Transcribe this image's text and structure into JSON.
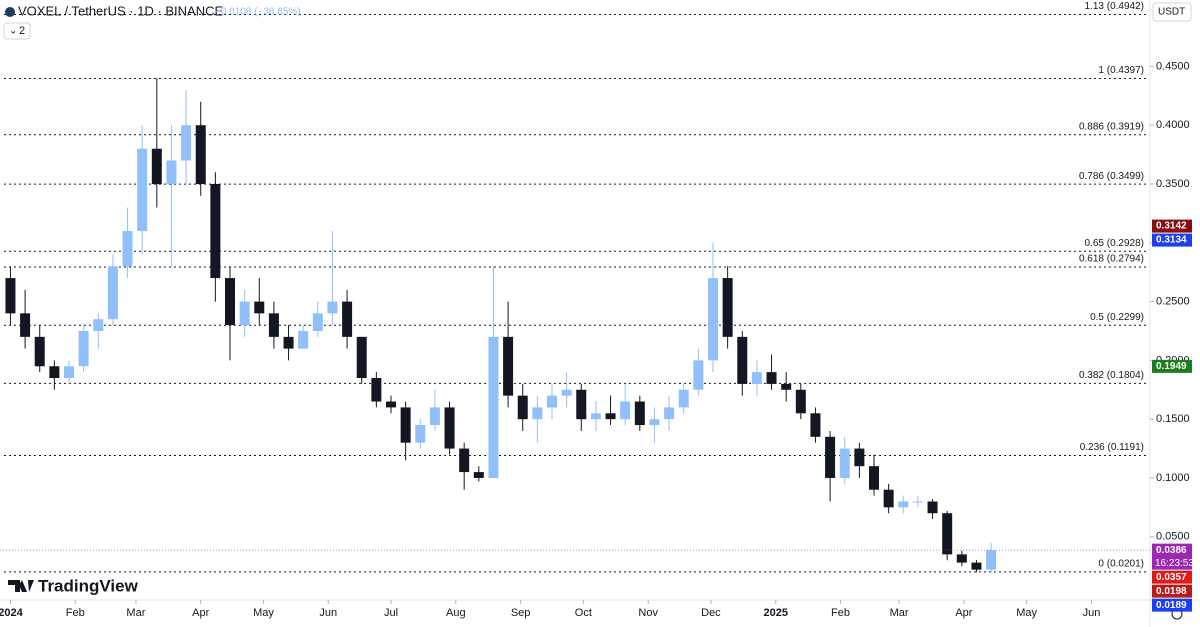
{
  "header": {
    "symbol": "VOXEL / TetherUS · 1D · BINANCE",
    "change": "−0.0108 (−38.85%)",
    "indicator_count": "2",
    "currency": "USDT"
  },
  "logo": "TradingView",
  "chart_data": {
    "type": "candlestick",
    "up_color": "#90bff9",
    "down_color": "#131722",
    "x": [
      0,
      7,
      14,
      21,
      28,
      35,
      42,
      49,
      56,
      63,
      70,
      77,
      84,
      91,
      98,
      105,
      112,
      119,
      126,
      133,
      140,
      147,
      154,
      161,
      168,
      175,
      182,
      189,
      196,
      203,
      210,
      217,
      224,
      231,
      238,
      245,
      252,
      259,
      266,
      273,
      280,
      287,
      294,
      301,
      308,
      315,
      322,
      329,
      336,
      343,
      350,
      357,
      364,
      371,
      378,
      385,
      392,
      399,
      406,
      413,
      420,
      427,
      434,
      441,
      448,
      455,
      462,
      469
    ],
    "open": [
      0.27,
      0.24,
      0.22,
      0.195,
      0.185,
      0.195,
      0.225,
      0.235,
      0.28,
      0.31,
      0.38,
      0.35,
      0.37,
      0.4,
      0.35,
      0.27,
      0.23,
      0.25,
      0.24,
      0.22,
      0.21,
      0.225,
      0.24,
      0.25,
      0.22,
      0.185,
      0.165,
      0.16,
      0.13,
      0.145,
      0.16,
      0.125,
      0.105,
      0.1,
      0.22,
      0.17,
      0.15,
      0.16,
      0.17,
      0.175,
      0.15,
      0.155,
      0.15,
      0.165,
      0.145,
      0.15,
      0.16,
      0.175,
      0.2,
      0.27,
      0.22,
      0.18,
      0.19,
      0.18,
      0.175,
      0.155,
      0.135,
      0.1,
      0.125,
      0.11,
      0.09,
      0.075,
      0.08,
      0.08,
      0.07,
      0.035,
      0.028,
      0.022
    ],
    "high": [
      0.28,
      0.26,
      0.23,
      0.2,
      0.2,
      0.23,
      0.24,
      0.29,
      0.33,
      0.4,
      0.44,
      0.4,
      0.43,
      0.42,
      0.36,
      0.28,
      0.26,
      0.27,
      0.25,
      0.23,
      0.23,
      0.25,
      0.31,
      0.26,
      0.22,
      0.19,
      0.17,
      0.165,
      0.15,
      0.175,
      0.165,
      0.13,
      0.11,
      0.28,
      0.25,
      0.18,
      0.17,
      0.18,
      0.19,
      0.18,
      0.165,
      0.17,
      0.18,
      0.17,
      0.16,
      0.17,
      0.18,
      0.21,
      0.3,
      0.28,
      0.225,
      0.2,
      0.205,
      0.19,
      0.18,
      0.16,
      0.14,
      0.135,
      0.13,
      0.12,
      0.095,
      0.085,
      0.085,
      0.082,
      0.072,
      0.038,
      0.03,
      0.045
    ],
    "low": [
      0.23,
      0.21,
      0.19,
      0.175,
      0.18,
      0.19,
      0.21,
      0.23,
      0.27,
      0.29,
      0.33,
      0.28,
      0.35,
      0.34,
      0.25,
      0.2,
      0.22,
      0.23,
      0.21,
      0.2,
      0.21,
      0.22,
      0.23,
      0.21,
      0.18,
      0.16,
      0.155,
      0.115,
      0.125,
      0.14,
      0.12,
      0.09,
      0.097,
      0.1,
      0.16,
      0.14,
      0.13,
      0.15,
      0.16,
      0.14,
      0.14,
      0.145,
      0.145,
      0.14,
      0.13,
      0.14,
      0.155,
      0.17,
      0.19,
      0.21,
      0.17,
      0.17,
      0.175,
      0.165,
      0.15,
      0.13,
      0.08,
      0.095,
      0.1,
      0.085,
      0.07,
      0.07,
      0.075,
      0.065,
      0.03,
      0.025,
      0.0198,
      0.0189
    ],
    "close": [
      0.24,
      0.22,
      0.195,
      0.185,
      0.195,
      0.225,
      0.235,
      0.28,
      0.31,
      0.38,
      0.35,
      0.37,
      0.4,
      0.35,
      0.27,
      0.23,
      0.25,
      0.24,
      0.22,
      0.21,
      0.225,
      0.24,
      0.25,
      0.22,
      0.185,
      0.165,
      0.16,
      0.13,
      0.145,
      0.16,
      0.125,
      0.105,
      0.1,
      0.22,
      0.17,
      0.15,
      0.16,
      0.17,
      0.175,
      0.15,
      0.155,
      0.15,
      0.165,
      0.145,
      0.15,
      0.16,
      0.175,
      0.2,
      0.27,
      0.22,
      0.18,
      0.19,
      0.18,
      0.175,
      0.155,
      0.135,
      0.1,
      0.125,
      0.11,
      0.09,
      0.075,
      0.08,
      0.08,
      0.07,
      0.035,
      0.028,
      0.022,
      0.0386
    ],
    "xlim": [
      -5,
      545
    ],
    "xticks": [
      {
        "value": 0,
        "label": "2024"
      },
      {
        "value": 31,
        "label": "Feb"
      },
      {
        "value": 60,
        "label": "Mar"
      },
      {
        "value": 91,
        "label": "Apr"
      },
      {
        "value": 121,
        "label": "May"
      },
      {
        "value": 152,
        "label": "Jun"
      },
      {
        "value": 182,
        "label": "Jul"
      },
      {
        "value": 213,
        "label": "Aug"
      },
      {
        "value": 244,
        "label": "Sep"
      },
      {
        "value": 274,
        "label": "Oct"
      },
      {
        "value": 305,
        "label": "Nov"
      },
      {
        "value": 335,
        "label": "Dec"
      },
      {
        "value": 366,
        "label": "2025"
      },
      {
        "value": 397,
        "label": "Feb"
      },
      {
        "value": 425,
        "label": "Mar"
      },
      {
        "value": 456,
        "label": "Apr"
      },
      {
        "value": 486,
        "label": "May"
      },
      {
        "value": 517,
        "label": "Jun"
      }
    ],
    "ylim": [
      -0.0038,
      0.5065
    ],
    "yticks": [
      {
        "value": 0.05,
        "label": "0.0500"
      },
      {
        "value": 0.1,
        "label": "0.1000"
      },
      {
        "value": 0.15,
        "label": "0.1500"
      },
      {
        "value": 0.2,
        "label": "0.2000"
      },
      {
        "value": 0.25,
        "label": "0.2500"
      },
      {
        "value": 0.3,
        "label": "0.3000"
      },
      {
        "value": 0.35,
        "label": "0.3500"
      },
      {
        "value": 0.4,
        "label": "0.4000"
      },
      {
        "value": 0.45,
        "label": "0.4500"
      }
    ],
    "fib_levels": [
      {
        "value": 0.4942,
        "label": "1.13 (0.4942)"
      },
      {
        "value": 0.4397,
        "label": "1 (0.4397)"
      },
      {
        "value": 0.3919,
        "label": "0.886 (0.3919)"
      },
      {
        "value": 0.3499,
        "label": "0.786 (0.3499)"
      },
      {
        "value": 0.2928,
        "label": "0.65 (0.2928)"
      },
      {
        "value": 0.2794,
        "label": "0.618 (0.2794)"
      },
      {
        "value": 0.2299,
        "label": "0.5 (0.2299)"
      },
      {
        "value": 0.1804,
        "label": "0.382 (0.1804)"
      },
      {
        "value": 0.1191,
        "label": "0.236 (0.1191)"
      },
      {
        "value": 0.0201,
        "label": "0 (0.0201)"
      }
    ],
    "price_tags": [
      {
        "value": 0.3142,
        "label": "0.3142",
        "color": "#880e0e"
      },
      {
        "value": 0.3134,
        "label": "0.3134",
        "color": "#1e3ff0"
      },
      {
        "value": 0.1949,
        "label": "0.1949",
        "color": "#1b7f1b"
      },
      {
        "value": 0.0386,
        "label": "0.0386",
        "sub": "16:23:53",
        "color": "#9c27b0"
      },
      {
        "value": 0.0357,
        "label": "0.0357",
        "color": "#e01919"
      },
      {
        "value": 0.0198,
        "label": "0.0198",
        "color": "#b71c1c"
      },
      {
        "value": 0.0189,
        "label": "0.0189",
        "color": "#1e3ff0"
      }
    ]
  }
}
